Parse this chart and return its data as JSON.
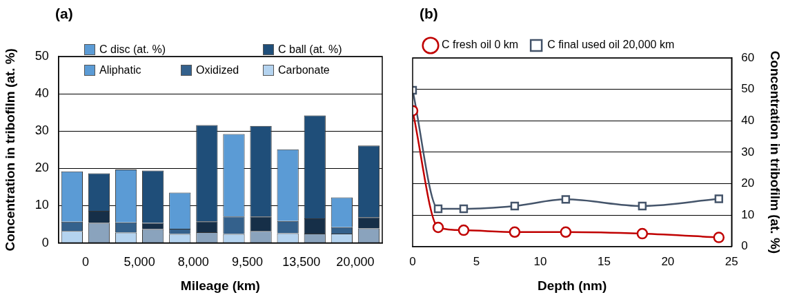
{
  "chart_data": [
    {
      "type": "bar",
      "title": "(a)",
      "xlabel": "Mileage (km)",
      "ylabel": "Concentration in tribofilm (at. %)",
      "categories": [
        "0",
        null,
        "5,000",
        null,
        "8,000",
        null,
        "9,500",
        null,
        "13,500",
        null,
        "20,000",
        null
      ],
      "stacked": true,
      "ylim": [
        0,
        50
      ],
      "yticks": [
        0,
        10,
        20,
        30,
        40,
        50
      ],
      "grid": "y",
      "legend": "top",
      "annotations": [
        "C disc (at. %)",
        "C ball (at. %)"
      ],
      "series": [
        {
          "name": "Carbonate",
          "colors": [
            "#b4d3ef",
            "#8aa3bd",
            "#b4d3ef",
            "#8aa3bd",
            "#b4d3ef",
            "#8aa3bd",
            "#b4d3ef",
            "#8aa3bd",
            "#b4d3ef",
            "#8aa3bd",
            "#b4d3ef",
            "#8aa3bd"
          ],
          "values": [
            3.2,
            5.4,
            2.8,
            3.7,
            2.4,
            2.9,
            2.4,
            3.2,
            2.6,
            2.5,
            2.5,
            3.9
          ]
        },
        {
          "name": "Oxidized",
          "colors": [
            "#34618c",
            "#162f48",
            "#34618c",
            "#162f48",
            "#34618c",
            "#162f48",
            "#34618c",
            "#162f48",
            "#34618c",
            "#162f48",
            "#34618c",
            "#162f48"
          ],
          "values": [
            2.5,
            3.2,
            2.7,
            1.7,
            1.4,
            2.9,
            4.7,
            3.9,
            3.3,
            4.1,
            1.7,
            3.0
          ]
        },
        {
          "name": "Aliphatic",
          "colors": [
            "#5b9bd5",
            "#1f4e79",
            "#5b9bd5",
            "#1f4e79",
            "#5b9bd5",
            "#1f4e79",
            "#5b9bd5",
            "#1f4e79",
            "#5b9bd5",
            "#1f4e79",
            "#5b9bd5",
            "#1f4e79"
          ],
          "values": [
            13.5,
            10.1,
            14.2,
            14.0,
            9.7,
            25.8,
            22.1,
            24.3,
            19.2,
            27.6,
            8.0,
            19.2
          ]
        }
      ]
    },
    {
      "type": "line",
      "title": "(b)",
      "xlabel": "Depth (nm)",
      "y2label": "Concentration in tribofilm (at. %)",
      "x": [
        0,
        2,
        4,
        8,
        12,
        18,
        24
      ],
      "xlim": [
        0,
        25
      ],
      "xticks": [
        0,
        5,
        10,
        15,
        20,
        25
      ],
      "y2lim": [
        0,
        60
      ],
      "y2ticks": [
        0,
        10,
        20,
        30,
        40,
        50,
        60
      ],
      "grid": "y",
      "legend": "top left",
      "series": [
        {
          "name": "C fresh oil 0 km",
          "color": "#c00000",
          "marker": "circle",
          "axis": "y2",
          "values": [
            43.2,
            6.1,
            5.2,
            4.6,
            4.6,
            4.1,
            2.9
          ]
        },
        {
          "name": "C final used oil 20,000 km",
          "color": "#44546a",
          "marker": "square",
          "axis": "y2",
          "values": [
            49.7,
            12.0,
            12.0,
            12.9,
            15.0,
            12.9,
            15.2
          ]
        }
      ]
    }
  ]
}
